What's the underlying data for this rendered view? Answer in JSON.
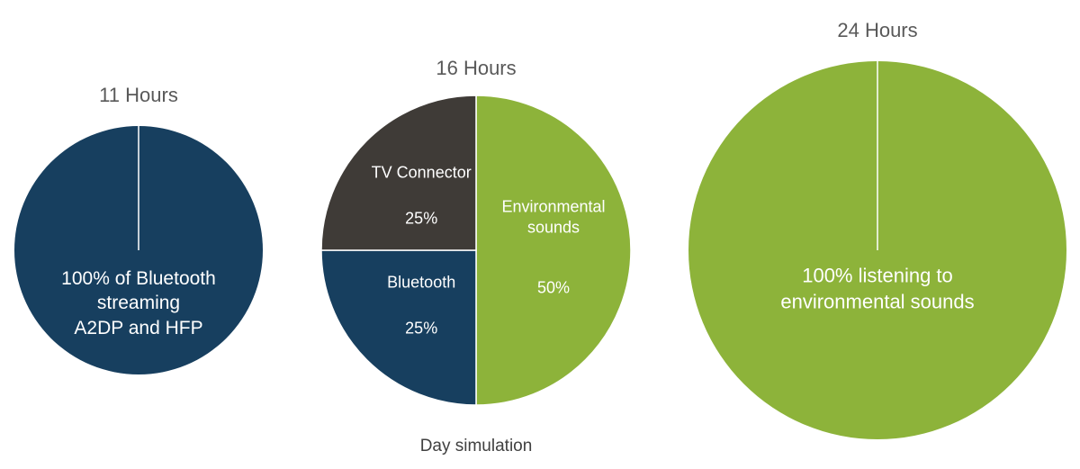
{
  "chart_data": [
    {
      "type": "pie",
      "title": "11 Hours",
      "categories": [
        "100% of Bluetooth\nstreaming\nA2DP and HFP"
      ],
      "values": [
        100
      ],
      "colors": [
        "#173f5f"
      ]
    },
    {
      "type": "pie",
      "title": "16 Hours",
      "categories": [
        "Environmental\nsounds",
        "Bluetooth",
        "TV Connector"
      ],
      "values": [
        50,
        25,
        25
      ],
      "value_labels": [
        "50%",
        "25%",
        "25%"
      ],
      "colors": [
        "#8db33a",
        "#173f5f",
        "#3f3b37"
      ]
    },
    {
      "type": "pie",
      "title": "24 Hours",
      "categories": [
        "100% listening to\nenvironmental sounds"
      ],
      "values": [
        100
      ],
      "colors": [
        "#8db33a"
      ]
    }
  ],
  "caption": "Day simulation"
}
